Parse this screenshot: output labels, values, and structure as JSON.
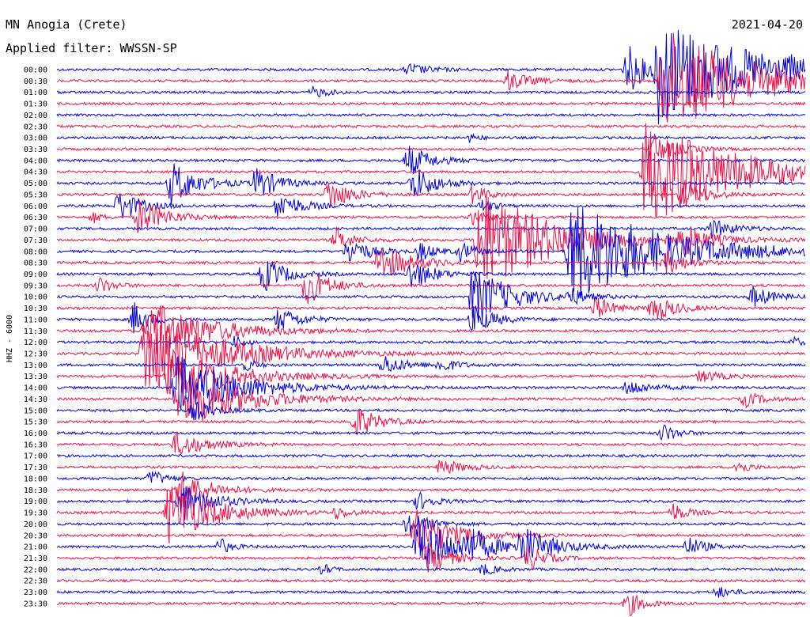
{
  "header": {
    "station": "MN Anogia (Crete)",
    "filter": "Applied filter: WWSSN-SP",
    "date": "2021-04-20"
  },
  "chart_data": {
    "type": "line",
    "title": "MN Anogia (Crete)",
    "subtitle": "Applied filter: WWSSN-SP",
    "date": "2021-04-20",
    "ylabel": "HHZ - 6000",
    "xlabel": "",
    "row_labels": [
      "00:00",
      "00:30",
      "01:00",
      "01:30",
      "02:00",
      "02:30",
      "03:00",
      "03:30",
      "04:00",
      "04:30",
      "05:00",
      "05:30",
      "06:00",
      "06:30",
      "07:00",
      "07:30",
      "08:00",
      "08:30",
      "09:00",
      "09:30",
      "10:00",
      "10:30",
      "11:00",
      "11:30",
      "12:00",
      "12:30",
      "13:00",
      "13:30",
      "14:00",
      "14:30",
      "15:00",
      "15:30",
      "16:00",
      "16:30",
      "17:00",
      "17:30",
      "18:00",
      "18:30",
      "19:00",
      "19:30",
      "20:00",
      "20:30",
      "21:00",
      "21:30",
      "22:00",
      "22:30",
      "23:00",
      "23:30"
    ],
    "trace_colors": [
      "#0000e0",
      "#ee1248"
    ],
    "minutes_per_row": 30,
    "grid": false,
    "events": [
      {
        "row": 0,
        "t": 22.8,
        "amp": 2.6,
        "dur": 1.2
      },
      {
        "row": 0,
        "t": 24.0,
        "amp": 5.0,
        "dur": 6.0
      },
      {
        "row": 1,
        "t": 18.0,
        "amp": 1.0,
        "dur": 1.5
      },
      {
        "row": 1,
        "t": 24.2,
        "amp": 5.0,
        "dur": 6.0
      },
      {
        "row": 2,
        "t": 10.2,
        "amp": 0.6,
        "dur": 1.0
      },
      {
        "row": 0,
        "t": 29.4,
        "amp": 0.5,
        "dur": 0.4
      },
      {
        "row": 0,
        "t": 14.0,
        "amp": 0.6,
        "dur": 1.5
      },
      {
        "row": 6,
        "t": 16.5,
        "amp": 0.5,
        "dur": 0.6
      },
      {
        "row": 7,
        "t": 23.8,
        "amp": 1.6,
        "dur": 1.5
      },
      {
        "row": 8,
        "t": 14.0,
        "amp": 1.6,
        "dur": 1.5
      },
      {
        "row": 9,
        "t": 23.5,
        "amp": 5.0,
        "dur": 6.0
      },
      {
        "row": 10,
        "t": 4.5,
        "amp": 2.2,
        "dur": 1.8
      },
      {
        "row": 10,
        "t": 7.9,
        "amp": 1.6,
        "dur": 1.5
      },
      {
        "row": 10,
        "t": 14.2,
        "amp": 1.8,
        "dur": 1.5
      },
      {
        "row": 11,
        "t": 10.8,
        "amp": 1.6,
        "dur": 1.5
      },
      {
        "row": 11,
        "t": 25.0,
        "amp": 1.6,
        "dur": 1.5
      },
      {
        "row": 11,
        "t": 16.6,
        "amp": 1.0,
        "dur": 1.0
      },
      {
        "row": 12,
        "t": 2.4,
        "amp": 1.6,
        "dur": 1.5
      },
      {
        "row": 12,
        "t": 8.8,
        "amp": 1.4,
        "dur": 1.5
      },
      {
        "row": 12,
        "t": 17.0,
        "amp": 0.8,
        "dur": 0.8
      },
      {
        "row": 13,
        "t": 1.4,
        "amp": 0.6,
        "dur": 0.6
      },
      {
        "row": 13,
        "t": 3.2,
        "amp": 1.8,
        "dur": 1.8
      },
      {
        "row": 13,
        "t": 16.6,
        "amp": 0.8,
        "dur": 1.0
      },
      {
        "row": 14,
        "t": 26.1,
        "amp": 1.0,
        "dur": 1.5
      },
      {
        "row": 15,
        "t": 16.8,
        "amp": 5.0,
        "dur": 5.0
      },
      {
        "row": 15,
        "t": 11.1,
        "amp": 1.2,
        "dur": 1.2
      },
      {
        "row": 15,
        "t": 25.0,
        "amp": 1.6,
        "dur": 1.5
      },
      {
        "row": 16,
        "t": 11.6,
        "amp": 1.4,
        "dur": 1.5
      },
      {
        "row": 16,
        "t": 14.5,
        "amp": 1.0,
        "dur": 1.0
      },
      {
        "row": 16,
        "t": 16.1,
        "amp": 1.0,
        "dur": 1.0
      },
      {
        "row": 16,
        "t": 20.5,
        "amp": 5.0,
        "dur": 6.0
      },
      {
        "row": 17,
        "t": 12.8,
        "amp": 1.8,
        "dur": 2.2
      },
      {
        "row": 17,
        "t": 24.3,
        "amp": 1.2,
        "dur": 1.5
      },
      {
        "row": 18,
        "t": 8.2,
        "amp": 1.8,
        "dur": 1.5
      },
      {
        "row": 18,
        "t": 14.1,
        "amp": 1.6,
        "dur": 1.5
      },
      {
        "row": 19,
        "t": 1.6,
        "amp": 0.9,
        "dur": 1.0
      },
      {
        "row": 19,
        "t": 9.9,
        "amp": 2.0,
        "dur": 1.5
      },
      {
        "row": 20,
        "t": 16.6,
        "amp": 3.0,
        "dur": 2.5
      },
      {
        "row": 20,
        "t": 20.5,
        "amp": 0.8,
        "dur": 1.0
      },
      {
        "row": 20,
        "t": 27.8,
        "amp": 1.0,
        "dur": 1.5
      },
      {
        "row": 21,
        "t": 21.5,
        "amp": 1.2,
        "dur": 1.2
      },
      {
        "row": 21,
        "t": 23.8,
        "amp": 1.4,
        "dur": 1.5
      },
      {
        "row": 22,
        "t": 8.8,
        "amp": 1.2,
        "dur": 1.5
      },
      {
        "row": 22,
        "t": 16.6,
        "amp": 1.4,
        "dur": 1.5
      },
      {
        "row": 22,
        "t": 3.0,
        "amp": 1.8,
        "dur": 1.0
      },
      {
        "row": 23,
        "t": 3.5,
        "amp": 3.0,
        "dur": 4.0
      },
      {
        "row": 24,
        "t": 7.1,
        "amp": 0.8,
        "dur": 0.6
      },
      {
        "row": 24,
        "t": 29.5,
        "amp": 0.6,
        "dur": 0.5
      },
      {
        "row": 25,
        "t": 3.4,
        "amp": 4.0,
        "dur": 5.0
      },
      {
        "row": 26,
        "t": 7.5,
        "amp": 0.6,
        "dur": 0.8
      },
      {
        "row": 26,
        "t": 13.0,
        "amp": 1.0,
        "dur": 1.5
      },
      {
        "row": 26,
        "t": 15.3,
        "amp": 0.8,
        "dur": 1.0
      },
      {
        "row": 27,
        "t": 4.4,
        "amp": 2.5,
        "dur": 4.0
      },
      {
        "row": 27,
        "t": 25.7,
        "amp": 0.6,
        "dur": 1.5
      },
      {
        "row": 28,
        "t": 4.7,
        "amp": 3.0,
        "dur": 4.0
      },
      {
        "row": 28,
        "t": 22.8,
        "amp": 0.8,
        "dur": 1.5
      },
      {
        "row": 29,
        "t": 4.8,
        "amp": 3.0,
        "dur": 4.0
      },
      {
        "row": 29,
        "t": 27.5,
        "amp": 0.8,
        "dur": 1.2
      },
      {
        "row": 30,
        "t": 5.4,
        "amp": 1.0,
        "dur": 1.5
      },
      {
        "row": 31,
        "t": 11.9,
        "amp": 1.6,
        "dur": 1.5
      },
      {
        "row": 32,
        "t": 24.2,
        "amp": 1.0,
        "dur": 1.0
      },
      {
        "row": 33,
        "t": 4.7,
        "amp": 1.2,
        "dur": 2.0
      },
      {
        "row": 35,
        "t": 15.3,
        "amp": 0.8,
        "dur": 1.5
      },
      {
        "row": 35,
        "t": 27.2,
        "amp": 0.8,
        "dur": 0.8
      },
      {
        "row": 36,
        "t": 3.7,
        "amp": 0.9,
        "dur": 1.0
      },
      {
        "row": 37,
        "t": 4.8,
        "amp": 2.0,
        "dur": 2.0
      },
      {
        "row": 38,
        "t": 4.9,
        "amp": 2.0,
        "dur": 2.0
      },
      {
        "row": 38,
        "t": 14.4,
        "amp": 1.0,
        "dur": 1.0
      },
      {
        "row": 39,
        "t": 4.4,
        "amp": 3.0,
        "dur": 3.0
      },
      {
        "row": 39,
        "t": 11.1,
        "amp": 0.6,
        "dur": 1.0
      },
      {
        "row": 39,
        "t": 24.6,
        "amp": 1.0,
        "dur": 1.0
      },
      {
        "row": 40,
        "t": 14.0,
        "amp": 1.2,
        "dur": 1.5
      },
      {
        "row": 41,
        "t": 14.3,
        "amp": 2.5,
        "dur": 2.5
      },
      {
        "row": 42,
        "t": 14.4,
        "amp": 3.0,
        "dur": 2.5
      },
      {
        "row": 42,
        "t": 16.4,
        "amp": 1.4,
        "dur": 1.5
      },
      {
        "row": 42,
        "t": 18.5,
        "amp": 2.0,
        "dur": 2.0
      },
      {
        "row": 42,
        "t": 6.4,
        "amp": 1.0,
        "dur": 0.8
      },
      {
        "row": 42,
        "t": 25.2,
        "amp": 1.0,
        "dur": 1.2
      },
      {
        "row": 43,
        "t": 14.8,
        "amp": 1.6,
        "dur": 1.5
      },
      {
        "row": 43,
        "t": 18.8,
        "amp": 1.4,
        "dur": 1.2
      },
      {
        "row": 44,
        "t": 10.6,
        "amp": 0.6,
        "dur": 0.6
      },
      {
        "row": 44,
        "t": 17.0,
        "amp": 0.6,
        "dur": 1.0
      },
      {
        "row": 46,
        "t": 26.4,
        "amp": 0.6,
        "dur": 1.0
      },
      {
        "row": 47,
        "t": 22.8,
        "amp": 1.4,
        "dur": 1.0
      }
    ]
  }
}
